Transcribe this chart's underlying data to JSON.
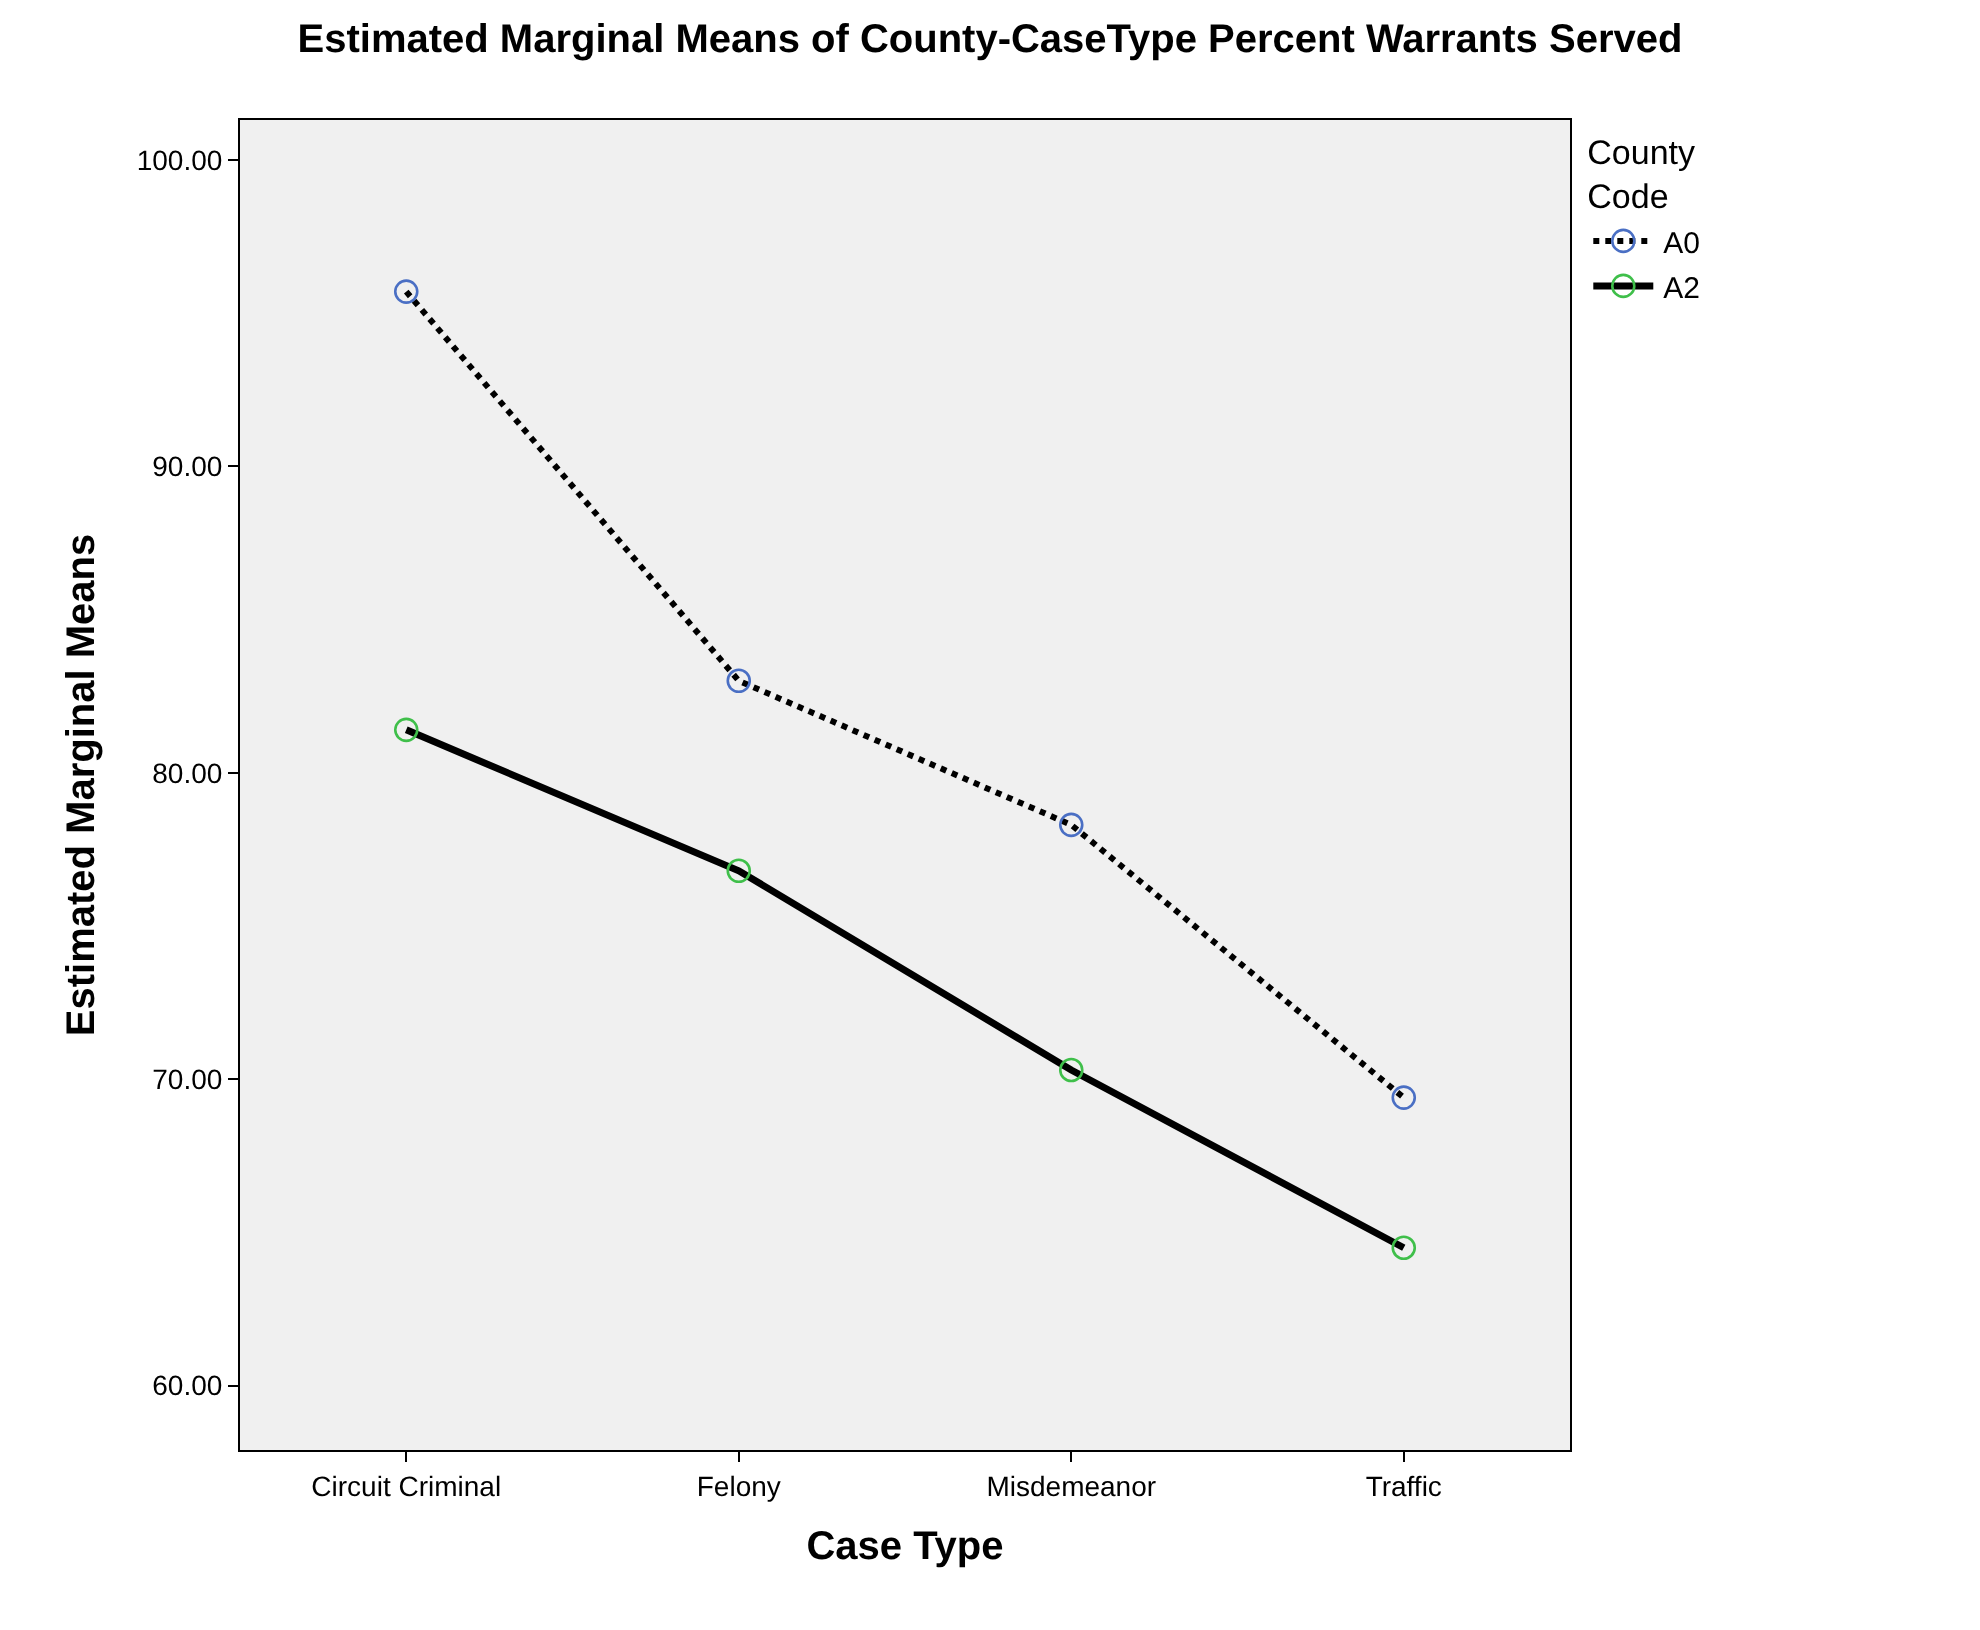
{
  "chart_data": {
    "type": "line",
    "title": "Estimated Marginal Means of County-CaseType Percent Warrants Served",
    "xlabel": "Case Type",
    "ylabel": "Estimated Marginal Means",
    "legend_title": "County Code",
    "categories": [
      "Circuit Criminal",
      "Felony",
      "Misdemeanor",
      "Traffic"
    ],
    "series": [
      {
        "name": "A0",
        "color": "#000000",
        "colors": [
          "#4a6fc4",
          "#4a6fc4",
          "#4a6fc4",
          "#4a6fc4"
        ],
        "line_style": "dotted",
        "values": [
          95.7,
          83.0,
          78.3,
          69.4
        ]
      },
      {
        "name": "A2",
        "color": "#000000",
        "colors": [
          "#3fbf4a",
          "#3fbf4a",
          "#3fbf4a",
          "#3fbf4a"
        ],
        "line_style": "solid",
        "values": [
          81.4,
          76.8,
          70.3,
          64.5
        ]
      }
    ],
    "ylim": [
      57.9,
      101.3
    ],
    "yticks": [
      {
        "value": 60,
        "label": "60.00"
      },
      {
        "value": 70,
        "label": "70.00"
      },
      {
        "value": 80,
        "label": "80.00"
      },
      {
        "value": 90,
        "label": "90.00"
      },
      {
        "value": 100,
        "label": "100.00"
      }
    ],
    "marker": "circle",
    "grid": false,
    "legend": "top right"
  }
}
